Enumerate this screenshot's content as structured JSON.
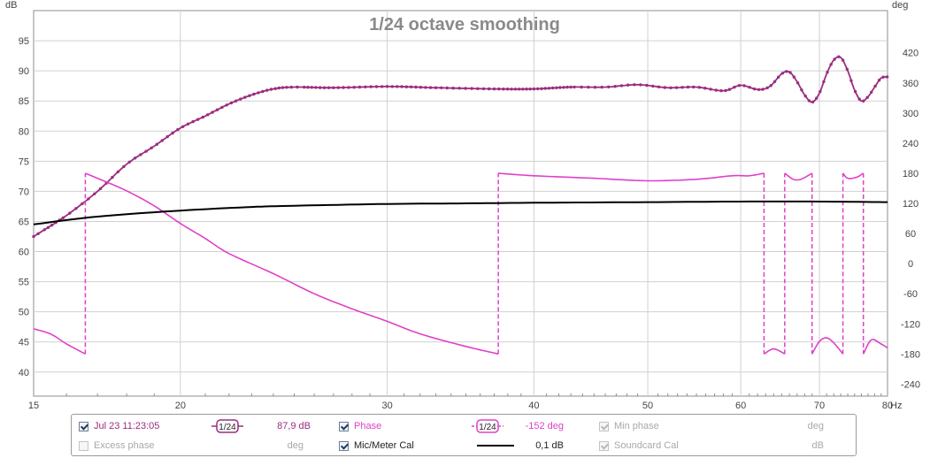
{
  "chart_data": {
    "type": "line",
    "title": "1/24 octave smoothing",
    "x_ticks": [
      "15",
      "20",
      "30",
      "40",
      "50",
      "60",
      "70",
      "80"
    ],
    "x_unit": "Hz",
    "y_left_unit": "dB",
    "y_left_ticks": [
      "95",
      "90",
      "85",
      "80",
      "75",
      "70",
      "65",
      "60",
      "55",
      "50",
      "45",
      "40"
    ],
    "y_right_unit": "deg",
    "y_right_ticks": [
      "420",
      "360",
      "300",
      "240",
      "180",
      "120",
      "60",
      "0",
      "-60",
      "-120",
      "-180",
      "-240"
    ],
    "xlim": [
      15,
      80
    ],
    "ylim_left": [
      36,
      100
    ],
    "ylim_right": [
      -264,
      504
    ],
    "grid": true,
    "series": [
      {
        "name": "Jul 23 11:23:05",
        "axis": "left",
        "color": "#9b2d80",
        "style": "line-with-dots",
        "x": [
          15,
          16,
          17,
          18,
          19,
          20,
          21,
          22,
          23,
          24,
          25,
          27,
          30,
          33,
          37,
          40,
          43,
          46,
          49,
          52,
          55,
          58,
          60,
          62,
          63.5,
          65,
          66,
          67,
          68,
          69,
          70,
          71,
          72,
          73,
          74,
          75,
          76,
          77,
          78,
          79,
          80
        ],
        "y": [
          62.5,
          66,
          70,
          74.5,
          77.5,
          80.5,
          82.5,
          84.5,
          86,
          87,
          87.3,
          87.2,
          87.4,
          87.2,
          87.0,
          87.0,
          87.3,
          87.3,
          87.7,
          87.2,
          87.3,
          86.7,
          87.6,
          86.9,
          87.4,
          89.5,
          89.8,
          88.2,
          86.0,
          84.8,
          86.3,
          89.5,
          91.8,
          92.2,
          90.0,
          86.8,
          85.0,
          85.7,
          87.3,
          88.8,
          89.0
        ]
      },
      {
        "name": "Phase",
        "axis": "right",
        "color": "#e040c8",
        "style": "line-with-wrap-dashes",
        "segments": [
          {
            "x": [
              15,
              15.5,
              16,
              16.6
            ],
            "y": [
              -130,
              -140,
              -160,
              -180
            ]
          },
          {
            "x": [
              16.6,
              17,
              18,
              19,
              20,
              21,
              22,
              24,
              26,
              28,
              30,
              32,
              35,
              37.3
            ],
            "y": [
              180,
              170,
              145,
              115,
              80,
              50,
              20,
              -20,
              -60,
              -90,
              -115,
              -140,
              -165,
              -180
            ]
          },
          {
            "x": [
              37.3,
              40,
              45,
              50,
              55,
              59,
              61,
              62.8
            ],
            "y": [
              180,
              175,
              170,
              165,
              168,
              175,
              175,
              180
            ]
          },
          {
            "x": [
              62.8,
              64,
              65.4
            ],
            "y": [
              -180,
              -170,
              -180
            ]
          },
          {
            "x": [
              65.4,
              66.5,
              67.5,
              69
            ],
            "y": [
              180,
              168,
              168,
              180
            ]
          },
          {
            "x": [
              69,
              70,
              71,
              72,
              73.3
            ],
            "y": [
              -180,
              -155,
              -148,
              -158,
              -180
            ]
          },
          {
            "x": [
              73.3,
              74,
              75.3,
              76.3
            ],
            "y": [
              180,
              170,
              172,
              180
            ]
          },
          {
            "x": [
              76.3,
              77.5,
              79,
              80
            ],
            "y": [
              -180,
              -152,
              -160,
              -168
            ]
          }
        ]
      },
      {
        "name": "Mic/Meter Cal",
        "axis": "left",
        "color": "#000000",
        "style": "line",
        "x": [
          15,
          17,
          20,
          23,
          25,
          30,
          35,
          40,
          50,
          60,
          70,
          80
        ],
        "y": [
          64.5,
          65.8,
          66.8,
          67.4,
          67.6,
          67.9,
          68.0,
          68.1,
          68.2,
          68.3,
          68.3,
          68.2
        ]
      }
    ]
  },
  "legend": {
    "row1": {
      "measurement": {
        "label": "Jul 23 11:23:05",
        "checked": true,
        "color": "#9b2d80",
        "smoothing": "1/24",
        "value": "87,9 dB"
      },
      "phase": {
        "label": "Phase",
        "checked": true,
        "color": "#e040c8",
        "smoothing": "1/24",
        "value": "-152 deg"
      },
      "min_phase": {
        "label": "Min phase",
        "checked": true,
        "disabled": true,
        "value": "deg"
      }
    },
    "row2": {
      "excess_phase": {
        "label": "Excess phase",
        "checked": false,
        "disabled": true,
        "value": "deg"
      },
      "mic_cal": {
        "label": "Mic/Meter Cal",
        "checked": true,
        "color": "#000000",
        "value": "0,1 dB"
      },
      "soundcard_cal": {
        "label": "Soundcard Cal",
        "checked": true,
        "disabled": true,
        "value": "dB"
      }
    }
  }
}
